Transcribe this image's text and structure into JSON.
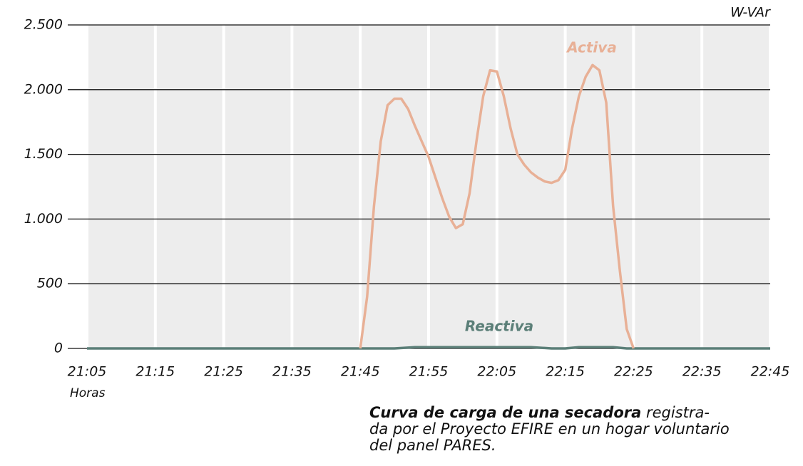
{
  "chart_data": {
    "type": "line",
    "unit_label": "W-VAr",
    "x_axis_label": "Horas",
    "caption_bold": "Curva de carga de una secadora",
    "caption_lines": [
      "registra-",
      "da por el Proyecto EFIRE en un hogar voluntario",
      "del panel PARES."
    ],
    "xlim": [
      "21:05",
      "22:45"
    ],
    "xticks": [
      "21:05",
      "21:15",
      "21:25",
      "21:35",
      "21:45",
      "21:55",
      "22:05",
      "22:15",
      "22:25",
      "22:35",
      "22:45"
    ],
    "ylim": [
      0,
      2500
    ],
    "yticks": [
      0,
      500,
      {
        "value": 1000,
        "label": "1.000"
      },
      {
        "value": 1500,
        "label": "1.500"
      },
      {
        "value": 2000,
        "label": "2.000"
      },
      {
        "value": 2500,
        "label": "2.500"
      }
    ],
    "grid": true,
    "series": [
      {
        "name": "Activa",
        "color": "#e8b096",
        "x": [
          "21:45",
          "21:46",
          "21:47",
          "21:48",
          "21:49",
          "21:50",
          "21:51",
          "21:52",
          "21:53",
          "21:54",
          "21:55",
          "21:56",
          "21:57",
          "21:58",
          "21:59",
          "22:00",
          "22:01",
          "22:02",
          "22:03",
          "22:04",
          "22:05",
          "22:06",
          "22:07",
          "22:08",
          "22:09",
          "22:10",
          "22:11",
          "22:12",
          "22:13",
          "22:14",
          "22:15",
          "22:16",
          "22:17",
          "22:18",
          "22:19",
          "22:20",
          "22:21",
          "22:22",
          "22:23",
          "22:24",
          "22:25"
        ],
        "values": [
          0,
          400,
          1100,
          1600,
          1880,
          1930,
          1930,
          1850,
          1720,
          1600,
          1480,
          1320,
          1160,
          1020,
          930,
          960,
          1200,
          1600,
          1950,
          2150,
          2140,
          1950,
          1700,
          1500,
          1420,
          1360,
          1320,
          1290,
          1280,
          1300,
          1380,
          1700,
          1950,
          2100,
          2190,
          2150,
          1900,
          1100,
          600,
          150,
          0
        ]
      },
      {
        "name": "Reactiva",
        "color": "#5b7f78",
        "x": [
          "21:05",
          "21:50",
          "21:53",
          "22:10",
          "22:13",
          "22:15",
          "22:17",
          "22:22",
          "22:24",
          "22:45"
        ],
        "values": [
          0,
          0,
          10,
          10,
          0,
          0,
          10,
          10,
          0,
          0
        ]
      }
    ]
  }
}
